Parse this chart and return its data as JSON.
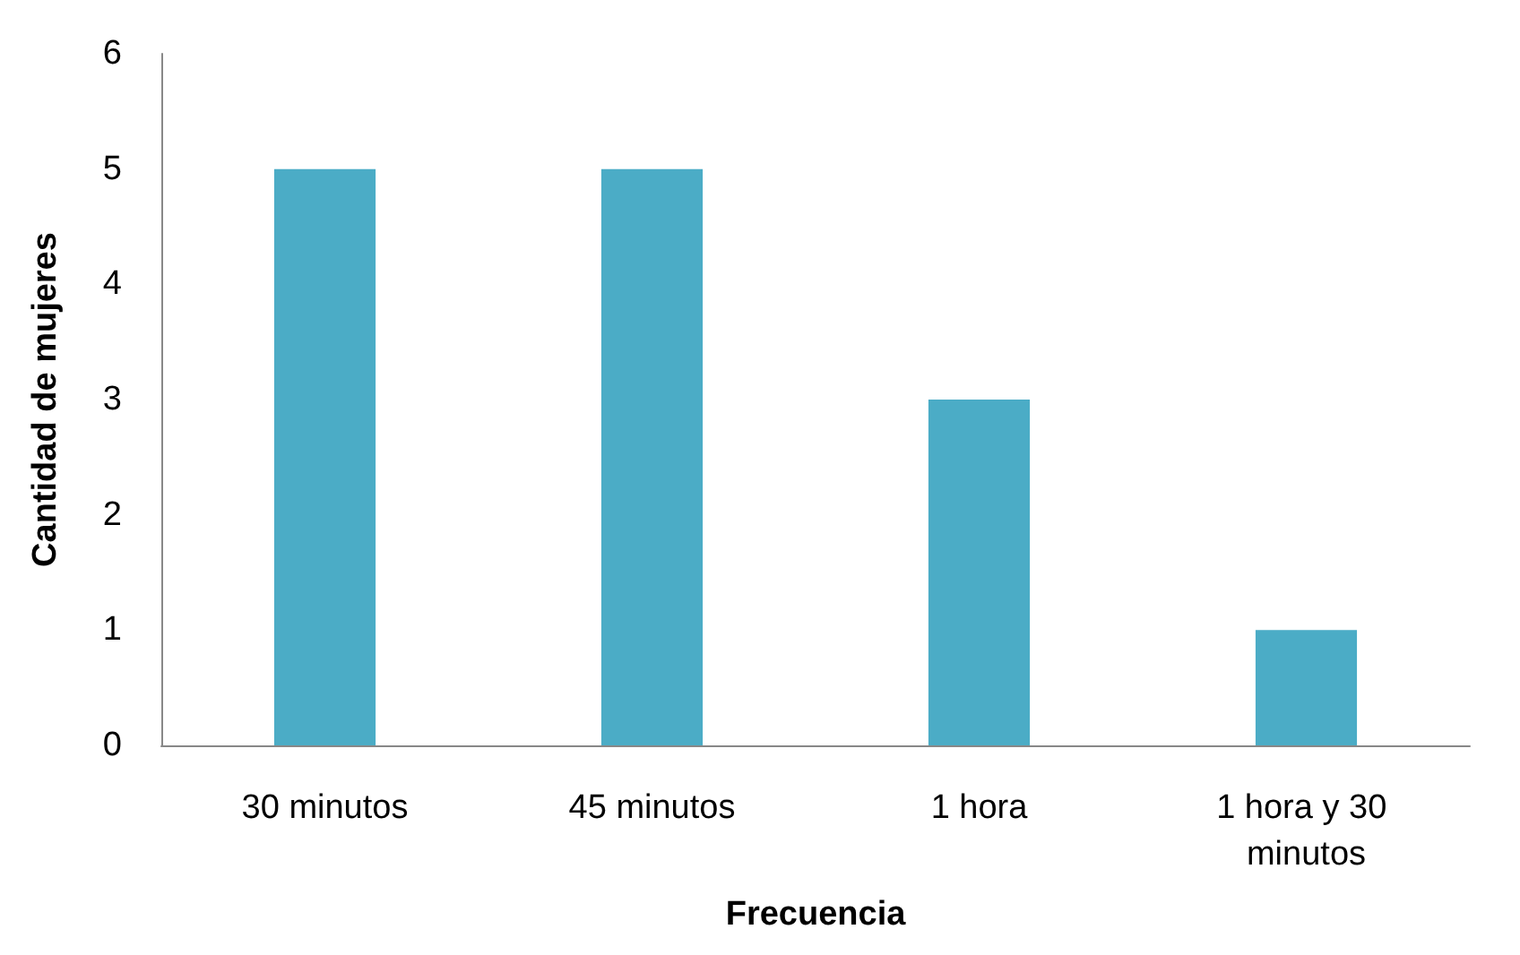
{
  "chart_data": {
    "type": "bar",
    "xlabel": "Frecuencia",
    "ylabel": "Cantidad de mujeres",
    "categories": [
      "30 minutos",
      "45 minutos",
      "1 hora",
      "1 hora y 30 minutos"
    ],
    "values": [
      5,
      5,
      3,
      1
    ],
    "color": "#4bacc6",
    "ylim": [
      0,
      6
    ],
    "yticks": [
      0,
      1,
      2,
      3,
      4,
      5,
      6
    ],
    "grid": false
  }
}
